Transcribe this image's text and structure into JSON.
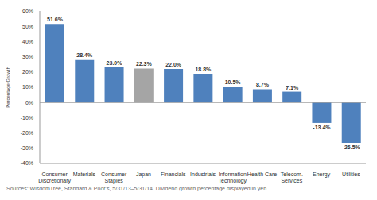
{
  "chart_data": {
    "type": "bar",
    "categories": [
      "Consumer Discretionary",
      "Materials",
      "Consumer Staples",
      "Japan",
      "Financials",
      "Industrials",
      "Information Technology",
      "Health Care",
      "Telecom. Services",
      "Energy",
      "Utilities"
    ],
    "values": [
      51.6,
      28.4,
      23.0,
      22.3,
      22.0,
      18.8,
      10.5,
      8.7,
      7.1,
      -13.4,
      -26.5
    ],
    "value_labels": [
      "51.6%",
      "28.4%",
      "23.0%",
      "22.3%",
      "22.0%",
      "18.8%",
      "10.5%",
      "8.7%",
      "7.1%",
      "-13.4%",
      "-26.5%"
    ],
    "colors": [
      "#4f81bd",
      "#4f81bd",
      "#4f81bd",
      "#a5a5a5",
      "#4f81bd",
      "#4f81bd",
      "#4f81bd",
      "#4f81bd",
      "#4f81bd",
      "#4f81bd",
      "#4f81bd"
    ],
    "y_label": "Percentage Growth",
    "ylim": [
      -40,
      60
    ],
    "yticks": [
      {
        "value": -40,
        "label": "-40%"
      },
      {
        "value": -30,
        "label": "-30%"
      },
      {
        "value": -20,
        "label": "-20%"
      },
      {
        "value": -10,
        "label": "-10%"
      },
      {
        "value": 0,
        "label": "0%"
      },
      {
        "value": 10,
        "label": "10%"
      },
      {
        "value": 20,
        "label": "20%"
      },
      {
        "value": 30,
        "label": "30%"
      },
      {
        "value": 40,
        "label": "40%"
      },
      {
        "value": 50,
        "label": "50%"
      },
      {
        "value": 60,
        "label": "60%"
      }
    ],
    "grid": false,
    "data_labels": true,
    "source": "Sources: WisdomTree, Standard & Poor's, 5/31/13–5/31/14. Dividend growth percentage displayed in yen."
  }
}
